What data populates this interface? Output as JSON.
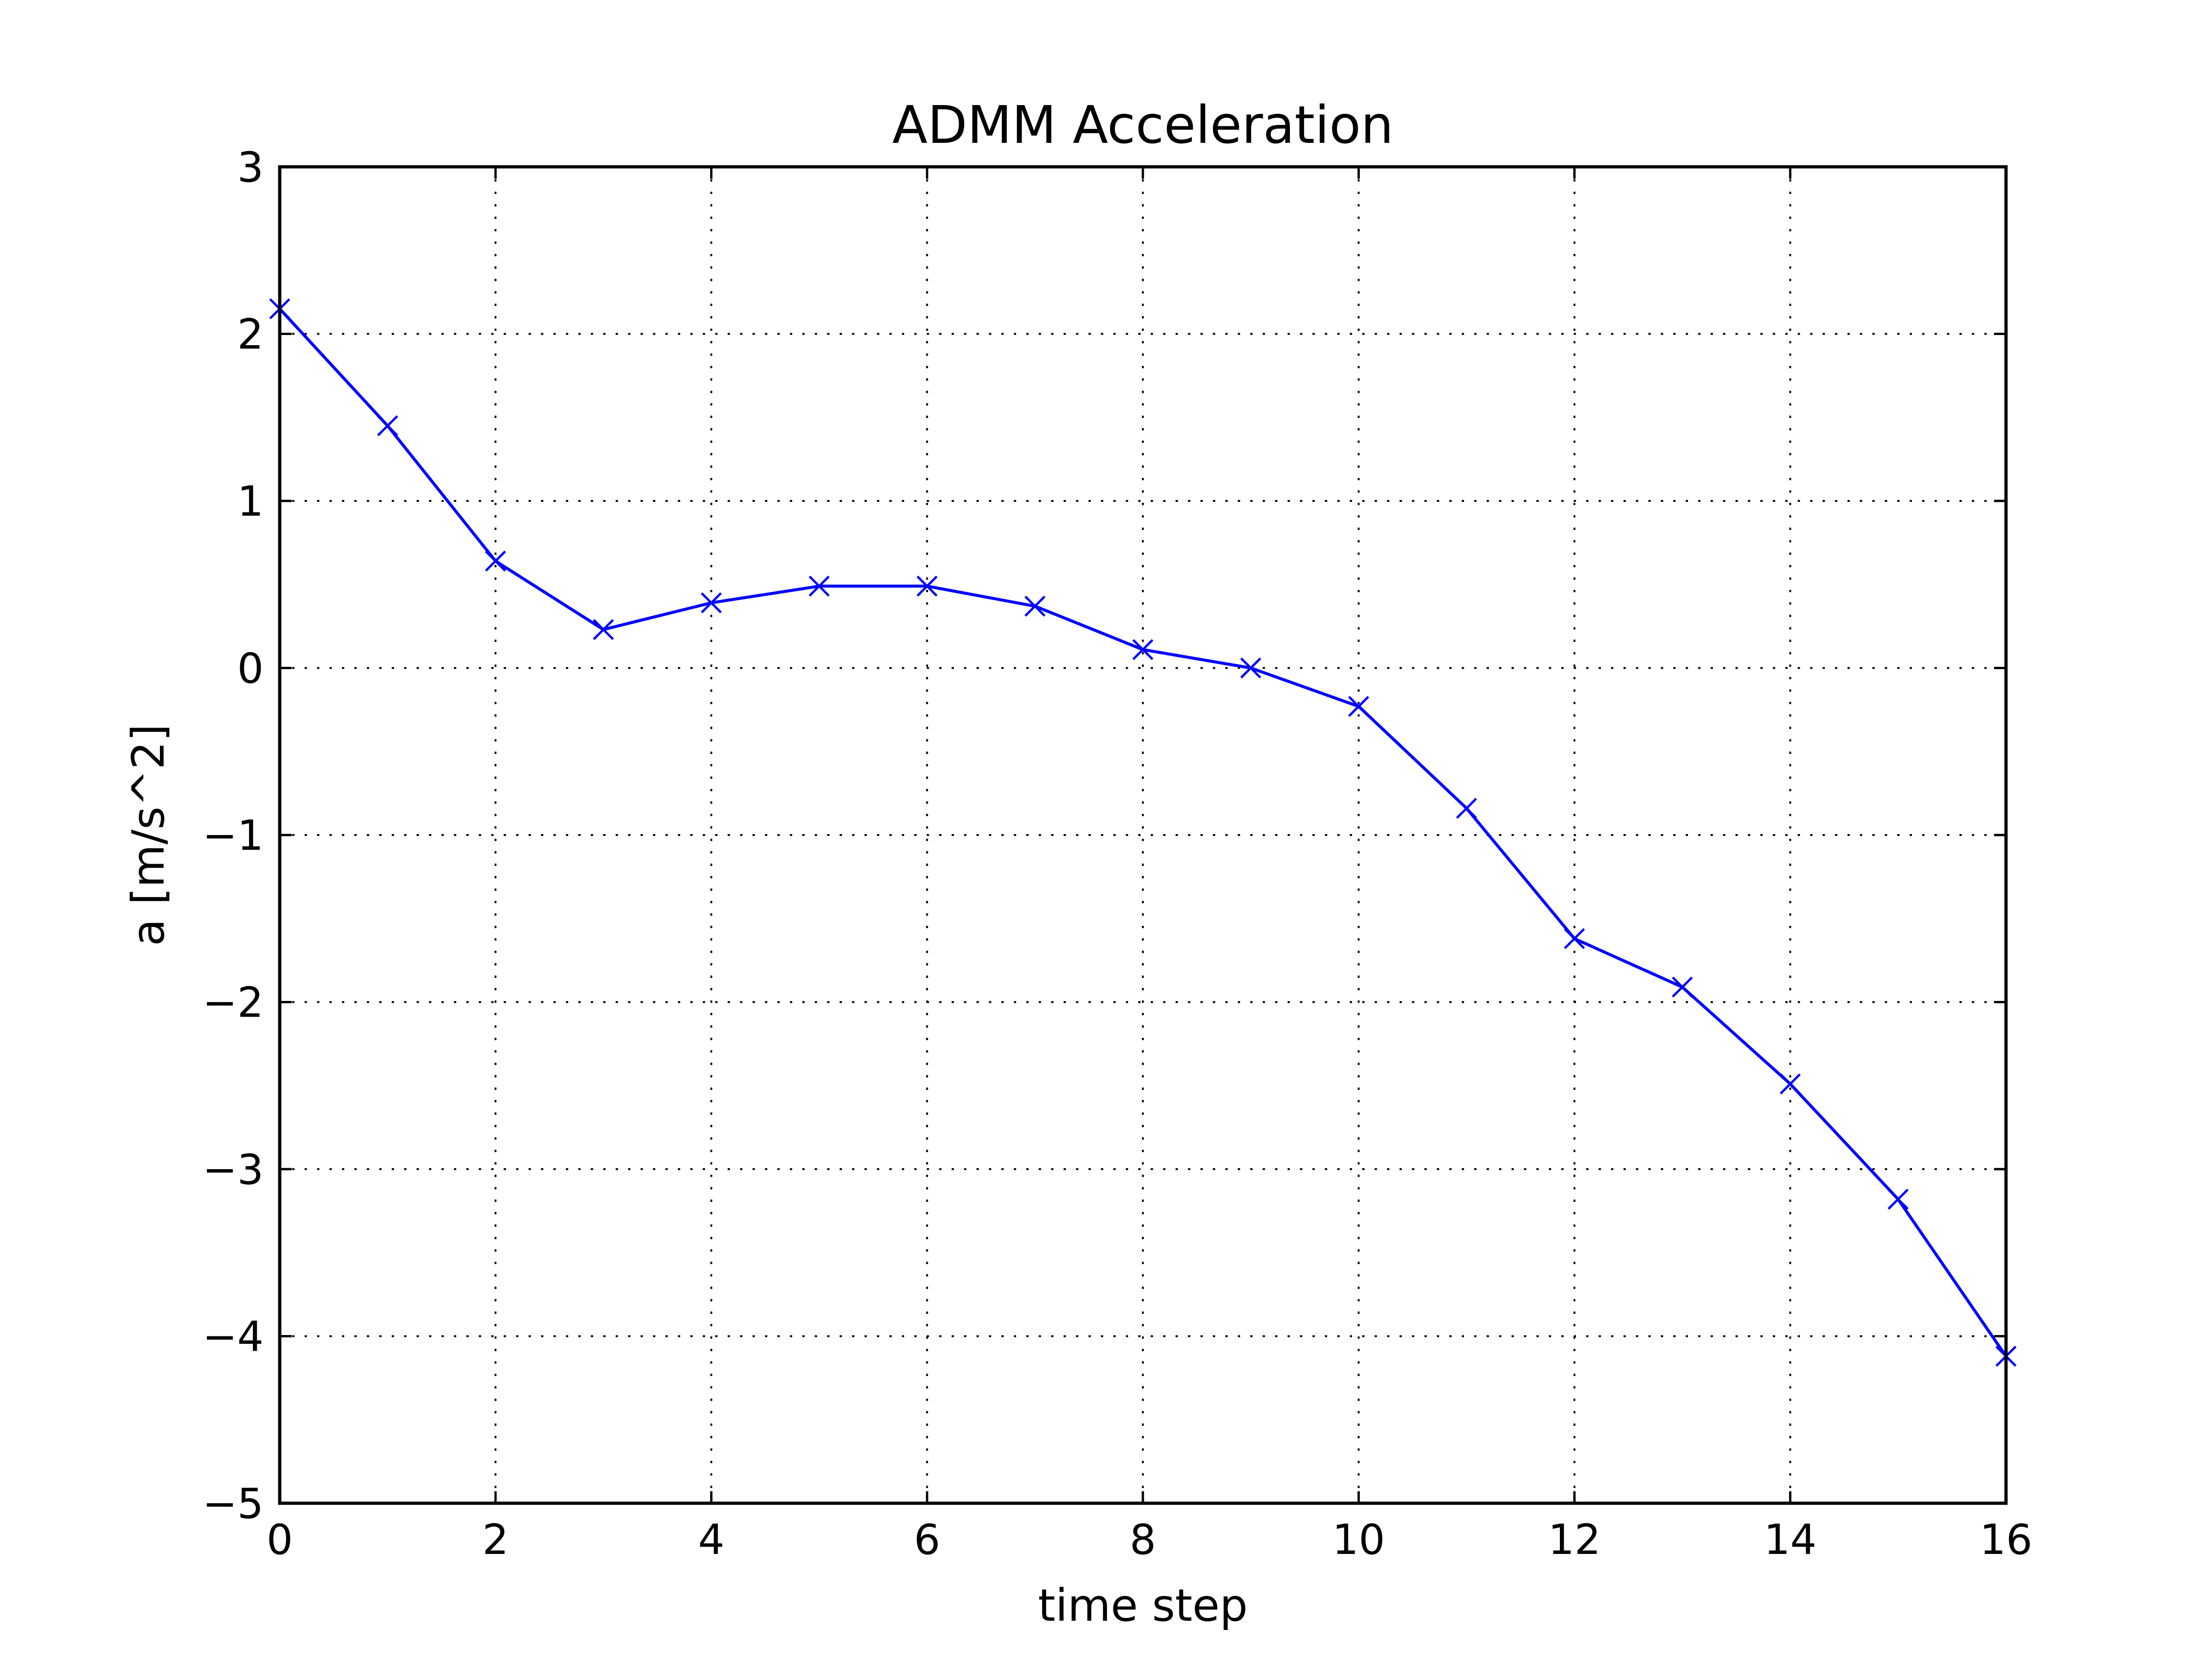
{
  "chart_data": {
    "type": "line",
    "title": "ADMM Acceleration",
    "xlabel": "time step",
    "ylabel": "a [m/s^2]",
    "xlim": [
      0,
      16
    ],
    "ylim": [
      -5,
      3
    ],
    "xticks": [
      0,
      2,
      4,
      6,
      8,
      10,
      12,
      14,
      16
    ],
    "yticks": [
      3,
      2,
      1,
      0,
      -1,
      -2,
      -3,
      -4,
      -5
    ],
    "xtick_labels": [
      "0",
      "2",
      "4",
      "6",
      "8",
      "10",
      "12",
      "14",
      "16"
    ],
    "ytick_labels": [
      "3",
      "2",
      "1",
      "0",
      "−1",
      "−2",
      "−3",
      "−4",
      "−5"
    ],
    "grid": true,
    "series": [
      {
        "color": "#0000ff",
        "marker": "x",
        "x": [
          0,
          1,
          2,
          3,
          4,
          5,
          6,
          7,
          8,
          9,
          10,
          11,
          12,
          13,
          14,
          15,
          16
        ],
        "y": [
          2.15,
          1.45,
          0.64,
          0.23,
          0.39,
          0.49,
          0.49,
          0.37,
          0.11,
          0.0,
          -0.23,
          -0.84,
          -1.62,
          -1.91,
          -2.49,
          -3.18,
          -4.12
        ]
      }
    ]
  }
}
